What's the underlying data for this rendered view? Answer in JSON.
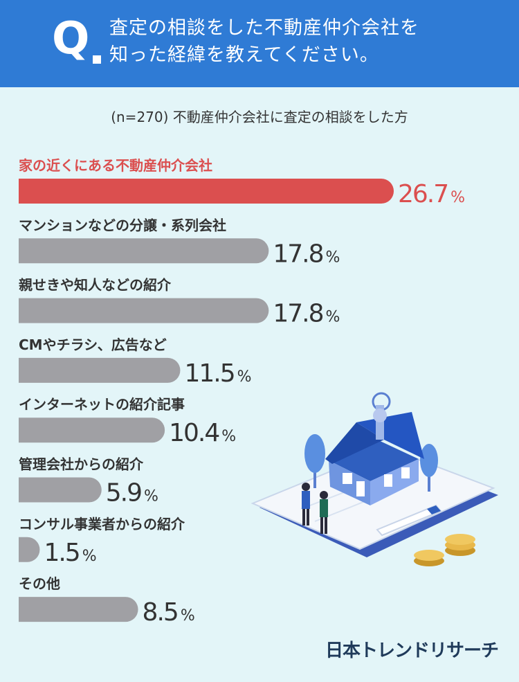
{
  "question": {
    "marker": "Q",
    "line1": "査定の相談をした不動産仲介会社を",
    "line2": "知った経緯を教えてください。"
  },
  "colors": {
    "header_bg": "#2f7bd5",
    "page_bg": "#e3f5f8",
    "highlight": "#db4f4f",
    "bar": "#a0a0a4",
    "text": "#333333"
  },
  "chart_data": {
    "type": "bar",
    "orientation": "horizontal",
    "subtitle": "(n=270) 不動産仲介会社に査定の相談をした方",
    "unit": "%",
    "categories": [
      "家の近くにある不動産仲介会社",
      "マンションなどの分譲・系列会社",
      "親せきや知人などの紹介",
      "CMやチラシ、広告など",
      "インターネットの紹介記事",
      "管理会社からの紹介",
      "コンサル事業者からの紹介",
      "その他"
    ],
    "values": [
      26.7,
      17.8,
      17.8,
      11.5,
      10.4,
      5.9,
      1.5,
      8.5
    ],
    "value_labels": [
      "26.7",
      "17.8",
      "17.8",
      "11.5",
      "10.4",
      "5.9",
      "1.5",
      "8.5"
    ],
    "highlight_index": 0,
    "grid": false,
    "legend": "none"
  },
  "brand": "日本トレンドリサーチ",
  "illustration": {
    "icons": [
      "house-icon",
      "key-icon",
      "people-icon",
      "pen-icon",
      "coins-icon",
      "tree-icon"
    ]
  }
}
